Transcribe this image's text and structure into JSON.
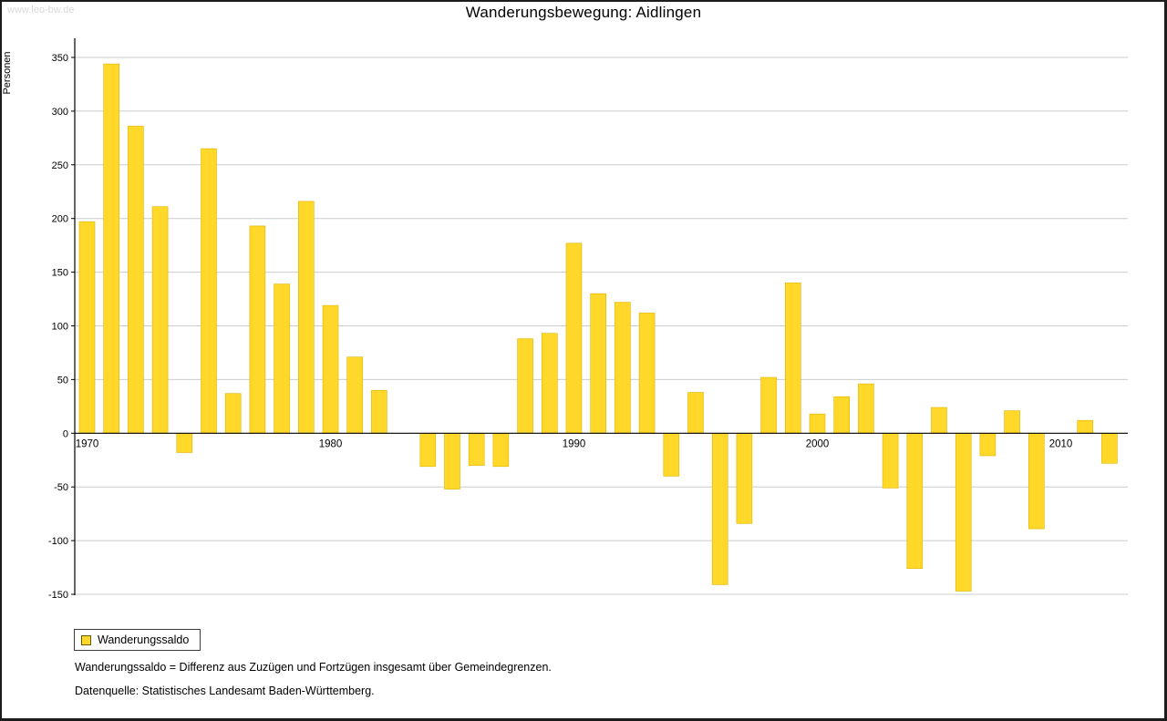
{
  "watermark": "www.leo-bw.de",
  "title": "Wanderungsbewegung: Aidlingen",
  "legend": {
    "label": "Wanderungssaldo"
  },
  "footnotes": [
    "Wanderungssaldo = Differenz aus Zuzügen und Fortzügen insgesamt über Gemeindegrenzen.",
    "Datenquelle: Statistisches Landesamt Baden-Württemberg."
  ],
  "colors": {
    "bar_fill": "#FFD82A",
    "bar_border": "#E0B400",
    "grid": "#CCCCCC",
    "axis": "#000000",
    "watermark": "#D9D9D9"
  },
  "chart_data": {
    "type": "bar",
    "title": "Wanderungsbewegung: Aidlingen",
    "xlabel": "",
    "ylabel": "Personen",
    "categories": [
      1970,
      1971,
      1972,
      1973,
      1974,
      1975,
      1976,
      1977,
      1978,
      1979,
      1980,
      1981,
      1982,
      1983,
      1984,
      1985,
      1986,
      1987,
      1988,
      1989,
      1990,
      1991,
      1992,
      1993,
      1994,
      1995,
      1996,
      1997,
      1998,
      1999,
      2000,
      2001,
      2002,
      2003,
      2004,
      2005,
      2006,
      2007,
      2008,
      2009,
      2010,
      2011,
      2012
    ],
    "series": [
      {
        "name": "Wanderungssaldo",
        "values": [
          197,
          344,
          286,
          211,
          -18,
          265,
          37,
          193,
          139,
          216,
          119,
          71,
          40,
          0,
          -31,
          -52,
          -30,
          -31,
          88,
          93,
          177,
          130,
          122,
          112,
          -40,
          38,
          -141,
          -84,
          52,
          140,
          18,
          34,
          46,
          -51,
          -126,
          24,
          -147,
          -21,
          21,
          -89,
          0,
          12,
          -28
        ]
      }
    ],
    "ylim": [
      -150,
      350
    ],
    "ytick_step": 50,
    "xticks": [
      1970,
      1980,
      1990,
      2000,
      2010
    ],
    "grid": true,
    "legend_position": "bottom-left"
  }
}
